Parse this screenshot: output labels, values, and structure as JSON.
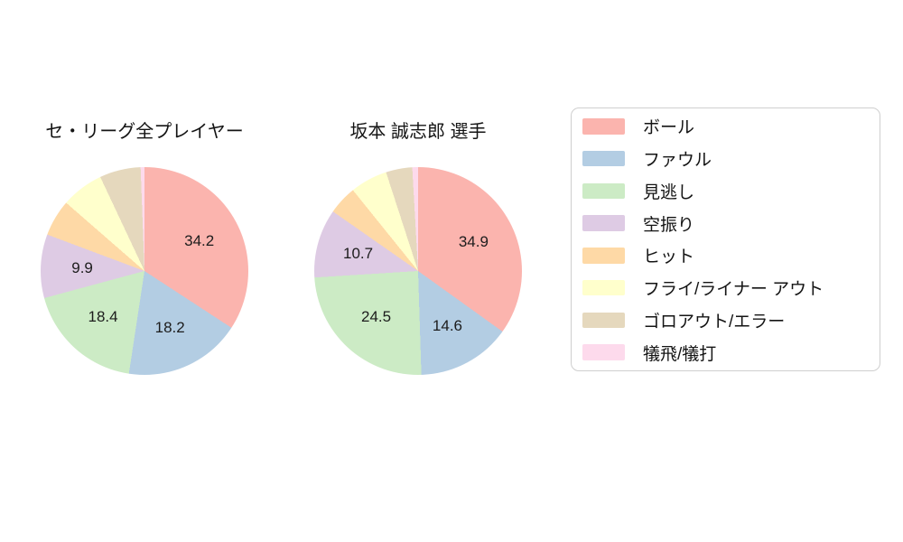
{
  "figure": {
    "background": "#ffffff",
    "palette_name": "pastel",
    "label_min_pct_for_display": 9
  },
  "legend": {
    "position": "right",
    "border_color": "#cfcfcf",
    "items": [
      {
        "label": "ボール",
        "color": "#fbb4ae"
      },
      {
        "label": "ファウル",
        "color": "#b3cde3"
      },
      {
        "label": "見逃し",
        "color": "#ccebc5"
      },
      {
        "label": "空振り",
        "color": "#decbe4"
      },
      {
        "label": "ヒット",
        "color": "#fed9a6"
      },
      {
        "label": "フライ/ライナー アウト",
        "color": "#ffffcc"
      },
      {
        "label": "ゴロアウト/エラー",
        "color": "#e5d8bd"
      },
      {
        "label": "犠飛/犠打",
        "color": "#fddaec"
      }
    ]
  },
  "chart_data": [
    {
      "type": "pie",
      "title": "セ・リーグ全プレイヤー",
      "labels": [
        "ボール",
        "ファウル",
        "見逃し",
        "空振り",
        "ヒット",
        "フライ/ライナー アウト",
        "ゴロアウト/エラー",
        "犠飛/犠打"
      ],
      "values": [
        34.2,
        18.2,
        18.4,
        9.9,
        5.7,
        6.6,
        6.4,
        0.6
      ],
      "colors": [
        "#fbb4ae",
        "#b3cde3",
        "#ccebc5",
        "#decbe4",
        "#fed9a6",
        "#ffffcc",
        "#e5d8bd",
        "#fddaec"
      ],
      "value_labels_shown": [
        "34.2",
        "18.2",
        "18.4",
        "9.9"
      ],
      "start_angle": "top",
      "direction": "clockwise",
      "legend_position": "right"
    },
    {
      "type": "pie",
      "title": "坂本 誠志郎 選手",
      "labels": [
        "ボール",
        "ファウル",
        "見逃し",
        "空振り",
        "ヒット",
        "フライ/ライナー アウト",
        "ゴロアウト/エラー",
        "犠飛/犠打"
      ],
      "values": [
        34.9,
        14.6,
        24.5,
        10.7,
        4.5,
        5.8,
        4.1,
        0.9
      ],
      "colors": [
        "#fbb4ae",
        "#b3cde3",
        "#ccebc5",
        "#decbe4",
        "#fed9a6",
        "#ffffcc",
        "#e5d8bd",
        "#fddaec"
      ],
      "value_labels_shown": [
        "34.9",
        "14.6",
        "24.5",
        "10.7"
      ],
      "start_angle": "top",
      "direction": "clockwise",
      "legend_position": "right"
    }
  ]
}
